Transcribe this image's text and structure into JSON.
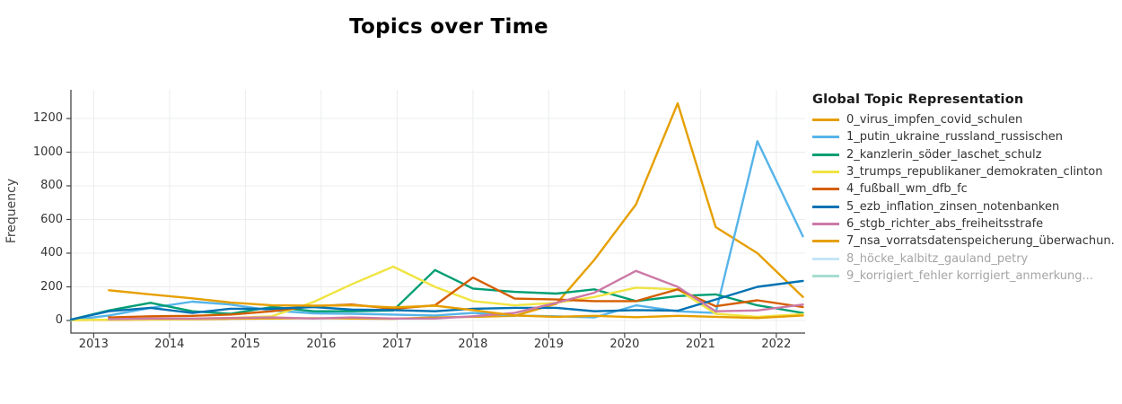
{
  "chart_data": {
    "type": "line",
    "title": "Topics over Time",
    "ylabel": "Frequency",
    "xlabel": "",
    "legend_title": "Global Topic Representation",
    "legend_position": "right",
    "grid": true,
    "x_range": [
      2012.7,
      2022.38
    ],
    "y_range": [
      -75,
      1370
    ],
    "x_ticks": [
      2013,
      2014,
      2015,
      2016,
      2017,
      2018,
      2019,
      2020,
      2021,
      2022
    ],
    "y_ticks": [
      0,
      200,
      400,
      600,
      800,
      1000,
      1200
    ],
    "colors": {
      "grid": "#ebecee",
      "axis": "#444444",
      "tick_text": "#333333",
      "muted_text": "#a5a5a5",
      "title_text": "#000000"
    },
    "x": [
      2012.7,
      2013.2,
      2013.75,
      2014.3,
      2014.8,
      2015.35,
      2015.9,
      2016.4,
      2016.95,
      2017.5,
      2018.0,
      2018.55,
      2019.1,
      2019.6,
      2020.15,
      2020.7,
      2021.2,
      2021.75,
      2022.35
    ],
    "series": [
      {
        "name": "0_virus_impfen_covid_schulen",
        "color": "#E69F00",
        "visible": true,
        "values": [
          2,
          4,
          6,
          8,
          10,
          12,
          14,
          12,
          10,
          18,
          22,
          28,
          100,
          360,
          690,
          1290,
          555,
          400,
          140
        ]
      },
      {
        "name": "1_putin_ukraine_russland_russischen",
        "color": "#56B4E9",
        "visible": true,
        "values": [
          2,
          30,
          75,
          112,
          95,
          60,
          42,
          40,
          35,
          30,
          45,
          30,
          25,
          18,
          90,
          55,
          45,
          1065,
          500
        ]
      },
      {
        "name": "2_kanzlerin_söder_laschet_schulz",
        "color": "#009E73",
        "visible": true,
        "values": [
          5,
          60,
          105,
          55,
          40,
          80,
          55,
          55,
          60,
          300,
          190,
          170,
          160,
          185,
          115,
          145,
          155,
          90,
          45
        ]
      },
      {
        "name": "3_trumps_republikaner_demokraten_clinton",
        "color": "#F0E442",
        "visible": true,
        "values": [
          2,
          5,
          8,
          10,
          15,
          25,
          110,
          215,
          320,
          200,
          115,
          90,
          105,
          140,
          195,
          185,
          40,
          22,
          38
        ]
      },
      {
        "name": "4_fußball_wm_dfb_fc",
        "color": "#D55E00",
        "visible": true,
        "values": [
          null,
          18,
          25,
          28,
          35,
          55,
          85,
          95,
          70,
          90,
          255,
          130,
          125,
          115,
          115,
          185,
          85,
          120,
          80
        ]
      },
      {
        "name": "5_ezb_inflation_zinsen_notenbanken",
        "color": "#0072B2",
        "visible": true,
        "values": [
          5,
          55,
          75,
          45,
          70,
          70,
          80,
          65,
          62,
          55,
          70,
          75,
          75,
          55,
          62,
          58,
          125,
          200,
          235
        ]
      },
      {
        "name": "6_stgb_richter_abs_freiheitsstrafe",
        "color": "#CC79A7",
        "visible": true,
        "values": [
          null,
          8,
          12,
          12,
          15,
          18,
          12,
          18,
          12,
          12,
          25,
          45,
          105,
          165,
          295,
          200,
          55,
          60,
          95
        ]
      },
      {
        "name": "7_nsa_vorratsdatenspeicherung_überwachun.",
        "color": "#E69F00",
        "visible": true,
        "values": [
          null,
          180,
          155,
          132,
          107,
          90,
          88,
          90,
          78,
          88,
          62,
          30,
          22,
          28,
          20,
          28,
          22,
          15,
          30
        ]
      },
      {
        "name": "8_höcke_kalbitz_gauland_petry",
        "color": "#56B4E9",
        "visible": false,
        "values": null
      },
      {
        "name": "9_korrigiert_fehler korrigiert_anmerkung...",
        "color": "#009E73",
        "visible": false,
        "values": null
      }
    ]
  }
}
